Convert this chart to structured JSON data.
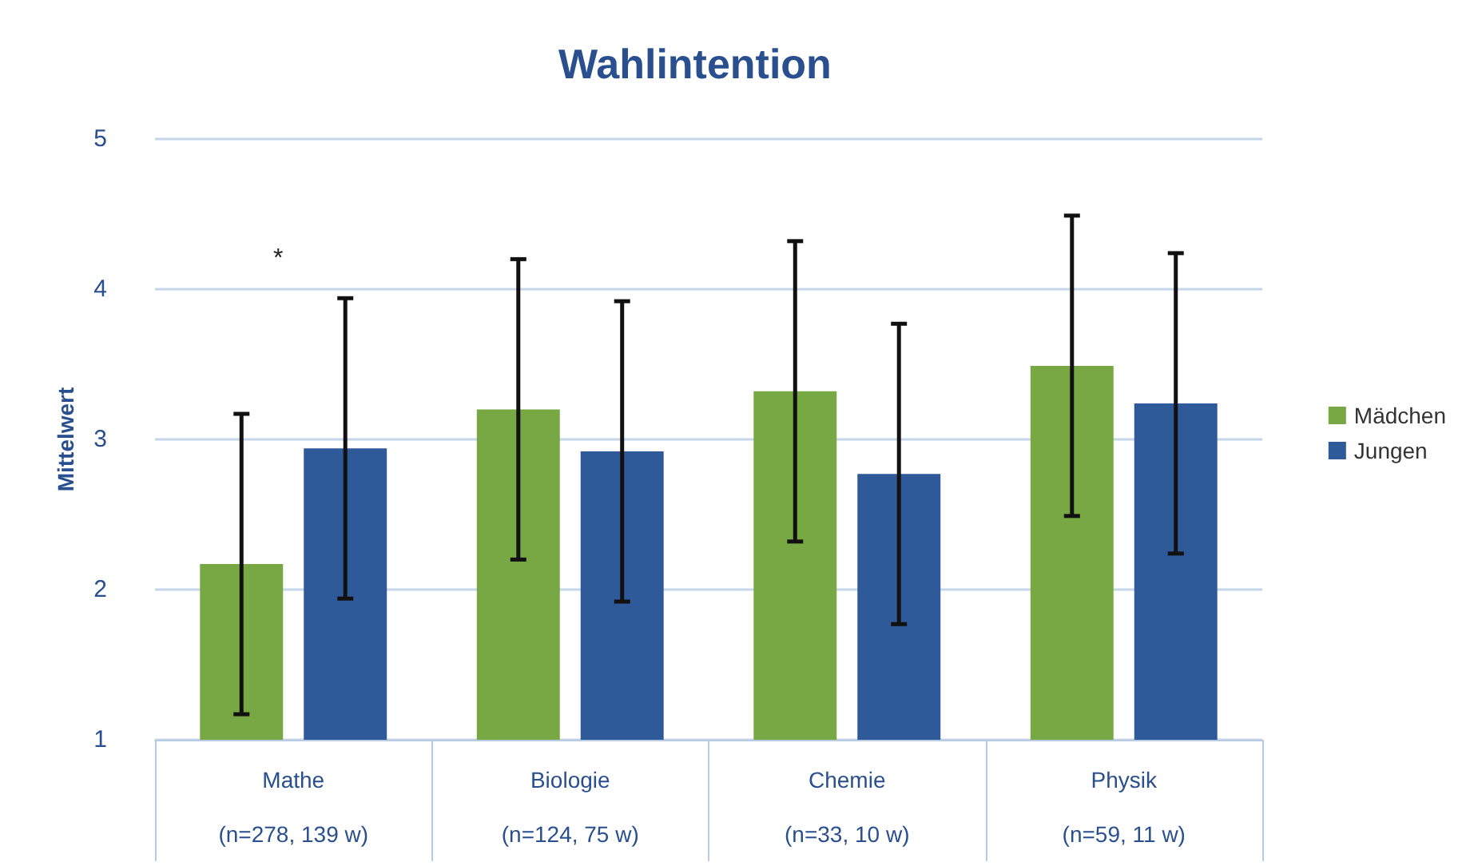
{
  "chart_data": {
    "type": "bar",
    "title": "Wahlintention",
    "ylabel": "Mittelwert",
    "categories": [
      "Mathe",
      "Biologie",
      "Chemie",
      "Physik"
    ],
    "series": [
      {
        "name": "Mädchen",
        "color": "#78a843",
        "values": [
          2.17,
          3.2,
          3.32,
          3.49
        ],
        "errors": [
          1.0,
          1.0,
          1.0,
          1.0
        ]
      },
      {
        "name": "Jungen",
        "color": "#2f5a9a",
        "values": [
          2.94,
          2.92,
          2.77,
          3.24
        ],
        "errors": [
          1.0,
          1.0,
          1.0,
          1.0
        ]
      }
    ],
    "ylim": [
      1,
      5
    ],
    "yticks": [
      1,
      2,
      3,
      4,
      5
    ],
    "grid": "y",
    "legend": "right",
    "annotations": [
      "(n=278, 139 w)",
      "(n=124, 75 w)",
      "(n=33, 10 w)",
      "(n=59, 11 w)",
      "*"
    ]
  }
}
